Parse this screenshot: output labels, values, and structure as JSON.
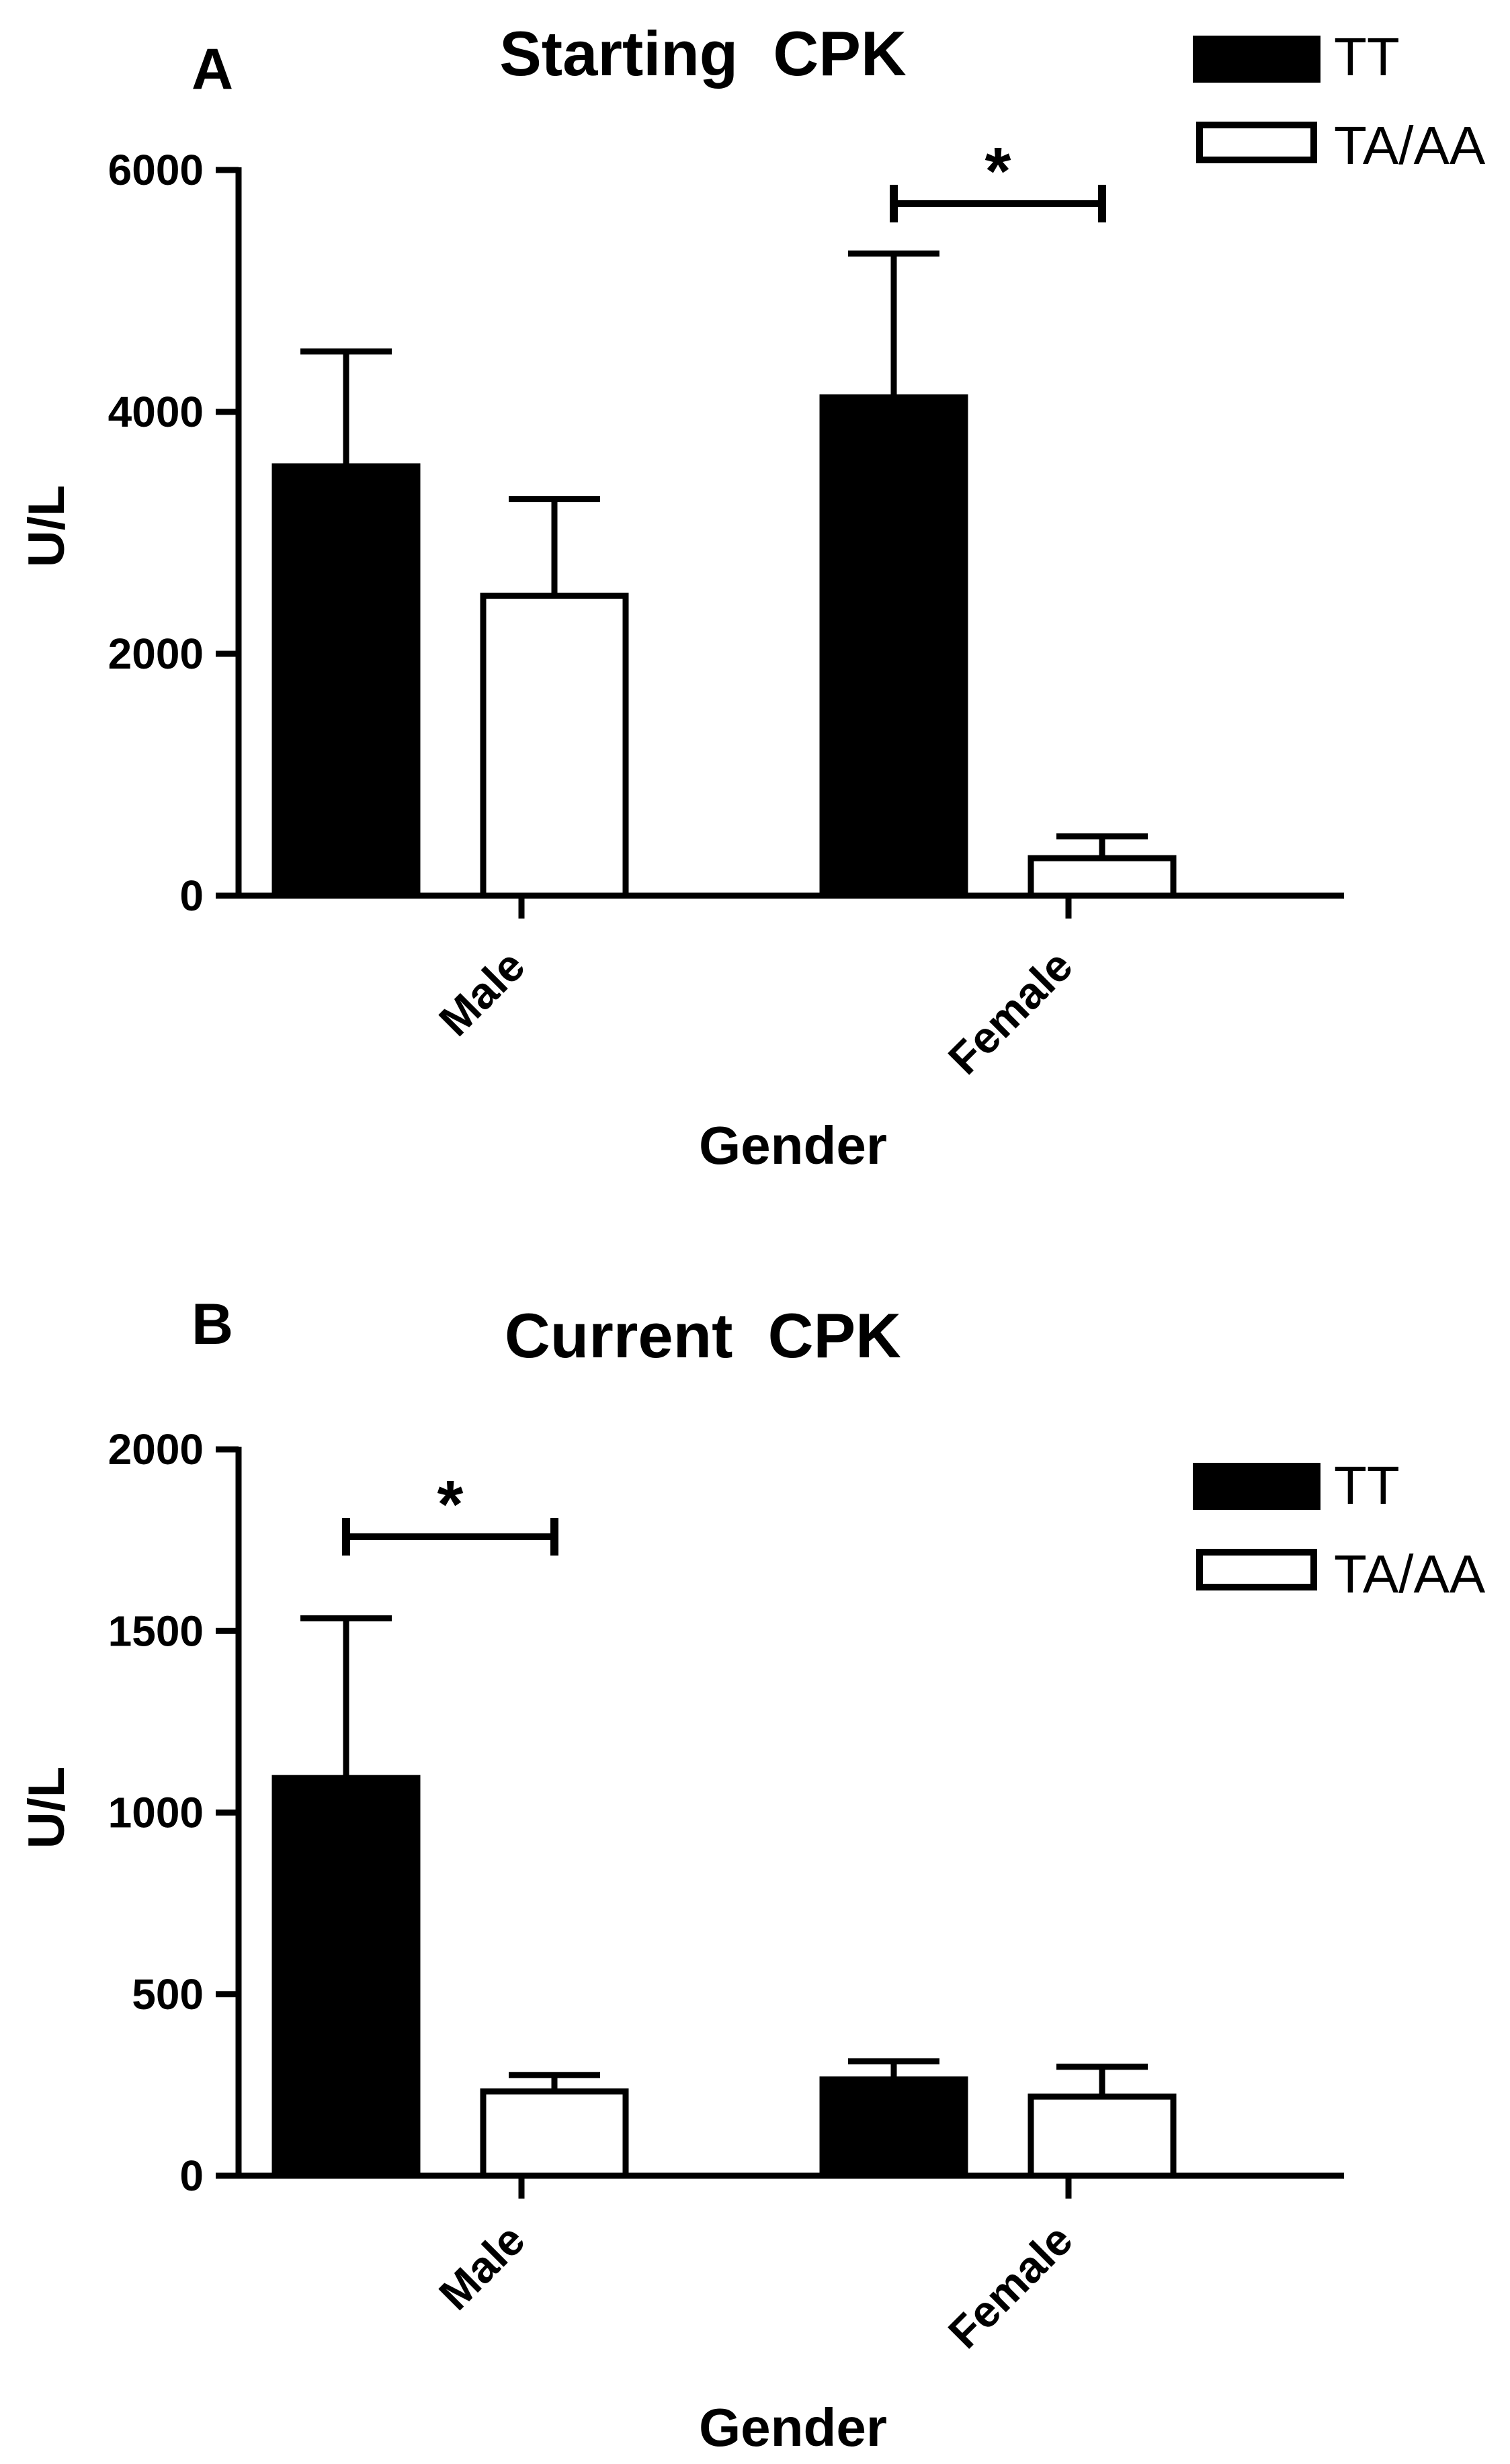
{
  "colors": {
    "tt": "#000000",
    "ta_aa": "#ffffff",
    "stroke": "#000000"
  },
  "chart_data": [
    {
      "panel_label": "A",
      "type": "bar",
      "title": "Starting  CPK",
      "xlabel": "Gender",
      "ylabel": "U/L",
      "categories": [
        "Male",
        "Female"
      ],
      "ylim": [
        0,
        6000
      ],
      "yticks": [
        "0",
        "2000",
        "4000",
        "6000"
      ],
      "series": [
        {
          "name": "TT",
          "values": [
            3550,
            4120
          ],
          "errors": [
            950,
            1190
          ]
        },
        {
          "name": "TA/AA",
          "values": [
            2480,
            310
          ],
          "errors": [
            800,
            180
          ]
        }
      ],
      "significance": [
        {
          "category": "Female",
          "label": "*"
        }
      ],
      "legend": {
        "placement": "top-right",
        "entries": [
          "TT",
          "TA/AA"
        ]
      }
    },
    {
      "panel_label": "B",
      "type": "bar",
      "title": "Current  CPK",
      "xlabel": "Gender",
      "ylabel": "U/L",
      "categories": [
        "Male",
        "Female"
      ],
      "ylim": [
        0,
        2000
      ],
      "yticks": [
        "0",
        "500",
        "1000",
        "1500",
        "2000"
      ],
      "series": [
        {
          "name": "TT",
          "values": [
            1095,
            265
          ],
          "errors": [
            440,
            50
          ]
        },
        {
          "name": "TA/AA",
          "values": [
            232,
            218
          ],
          "errors": [
            45,
            82
          ]
        }
      ],
      "significance": [
        {
          "category": "Male",
          "label": "*"
        }
      ],
      "legend": {
        "placement": "top-right",
        "entries": [
          "TT",
          "TA/AA"
        ]
      }
    }
  ]
}
